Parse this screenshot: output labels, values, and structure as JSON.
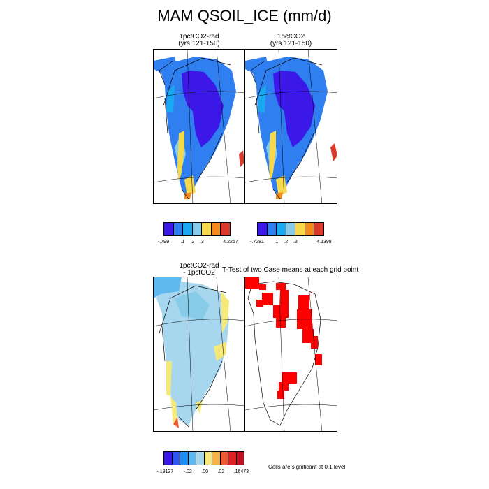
{
  "figure": {
    "title": "MAM QSOIL_ICE (mm/d)",
    "panels": [
      {
        "id": "p1",
        "title_line1": "1pctCO2-rad",
        "title_line2": "(yrs 121-150)"
      },
      {
        "id": "p2",
        "title_line1": "1pctCO2",
        "title_line2": "(yrs 121-150)"
      },
      {
        "id": "p3",
        "title_line1": "1pctCO2-rad",
        "title_line2": "- 1pctCO2"
      },
      {
        "id": "p4",
        "title_line1": "T-Test of two Case means at each grid point",
        "title_line2": ""
      }
    ],
    "colorbars": [
      {
        "id": "cb1",
        "colors": [
          "#3b18e8",
          "#2f7ff0",
          "#1aa9f0",
          "#87cbe8",
          "#f6d94a",
          "#f28a1c",
          "#d93a2a"
        ],
        "tick_labels": [
          "-.799",
          ".1",
          ".2",
          ".3",
          "4.2267"
        ]
      },
      {
        "id": "cb2",
        "colors": [
          "#3b18e8",
          "#2f7ff0",
          "#1aa9f0",
          "#87cbe8",
          "#f6d94a",
          "#f28a1c",
          "#d93a2a"
        ],
        "tick_labels": [
          "-.7281",
          ".1",
          ".2",
          ".3",
          "4.1398"
        ]
      },
      {
        "id": "cb3",
        "colors": [
          "#3b18e8",
          "#2e58f0",
          "#1f8df2",
          "#5fb8ee",
          "#a7d7ef",
          "#f6e97a",
          "#f2b44a",
          "#ee5a30",
          "#e0201f",
          "#c80f22"
        ],
        "tick_labels": [
          "-.19137",
          "-.02",
          ".00",
          ".02",
          ".16473"
        ]
      }
    ],
    "note": "Cells are significant at 0.1 level"
  }
}
